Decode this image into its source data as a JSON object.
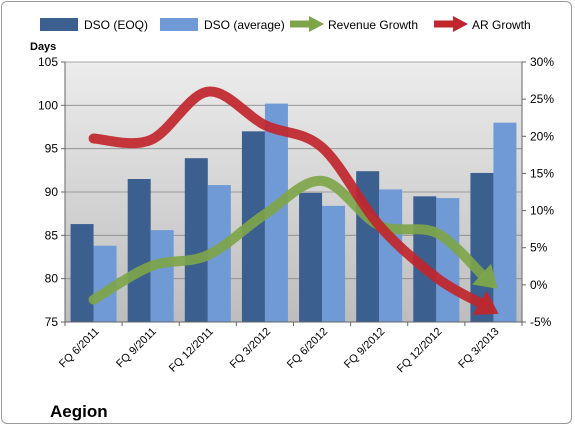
{
  "company": "Aegion",
  "chart_data": {
    "type": "bar",
    "categories": [
      "FQ 6/2011",
      "FQ 9/2011",
      "FQ 12/2011",
      "FQ 3/2012",
      "FQ 6/2012",
      "FQ 9/2012",
      "FQ 12/2012",
      "FQ 3/2013"
    ],
    "ylabel": "Days",
    "ylim": [
      75,
      105
    ],
    "yticks": [
      75,
      80,
      85,
      90,
      95,
      100,
      105
    ],
    "y2lim": [
      -5,
      30
    ],
    "y2ticks": [
      "-5%",
      "0%",
      "5%",
      "10%",
      "15%",
      "20%",
      "25%",
      "30%"
    ],
    "grid": true,
    "legend_position": "top",
    "series": [
      {
        "name": "DSO (EOQ)",
        "kind": "bar",
        "axis": "left",
        "color": "#3b5f8f",
        "values": [
          86.3,
          91.5,
          93.9,
          97.0,
          89.9,
          92.4,
          89.5,
          92.2
        ]
      },
      {
        "name": "DSO (average)",
        "kind": "bar",
        "axis": "left",
        "color": "#6f9ad6",
        "values": [
          83.8,
          85.6,
          90.8,
          100.2,
          88.4,
          90.3,
          89.3,
          98.0
        ]
      },
      {
        "name": "Revenue Growth",
        "kind": "arrow-line",
        "axis": "right",
        "color": "#7ea54a",
        "values": [
          -2.0,
          2.5,
          4.0,
          9.5,
          14.0,
          8.0,
          7.0,
          0.0
        ]
      },
      {
        "name": "AR Growth",
        "kind": "arrow-line",
        "axis": "right",
        "color": "#c0262c",
        "values": [
          19.7,
          19.5,
          26.0,
          21.5,
          18.5,
          8.0,
          1.0,
          -3.5
        ]
      }
    ]
  }
}
